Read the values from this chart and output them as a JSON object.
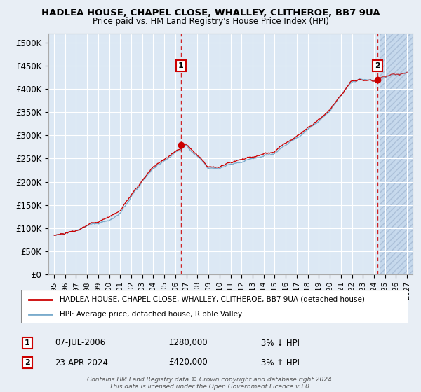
{
  "title": "HADLEA HOUSE, CHAPEL CLOSE, WHALLEY, CLITHEROE, BB7 9UA",
  "subtitle": "Price paid vs. HM Land Registry's House Price Index (HPI)",
  "background_color": "#e8eef5",
  "plot_bg_color": "#dce8f4",
  "grid_color": "#ffffff",
  "sale1_date_num": 2006.52,
  "sale1_price": 280000,
  "sale1_label": "07-JUL-2006",
  "sale1_hpi_rel": "3% ↓ HPI",
  "sale2_date_num": 2024.31,
  "sale2_price": 420000,
  "sale2_label": "23-APR-2024",
  "sale2_hpi_rel": "3% ↑ HPI",
  "ylabel_ticks": [
    0,
    50000,
    100000,
    150000,
    200000,
    250000,
    300000,
    350000,
    400000,
    450000,
    500000
  ],
  "ylabel_labels": [
    "£0",
    "£50K",
    "£100K",
    "£150K",
    "£200K",
    "£250K",
    "£300K",
    "£350K",
    "£400K",
    "£450K",
    "£500K"
  ],
  "xlim": [
    1994.5,
    2027.5
  ],
  "ylim": [
    0,
    520000
  ],
  "xtick_years": [
    1995,
    1996,
    1997,
    1998,
    1999,
    2000,
    2001,
    2002,
    2003,
    2004,
    2005,
    2006,
    2007,
    2008,
    2009,
    2010,
    2011,
    2012,
    2013,
    2014,
    2015,
    2016,
    2017,
    2018,
    2019,
    2020,
    2021,
    2022,
    2023,
    2024,
    2025,
    2026,
    2027
  ],
  "legend_line1": "HADLEA HOUSE, CHAPEL CLOSE, WHALLEY, CLITHEROE, BB7 9UA (detached house)",
  "legend_line2": "HPI: Average price, detached house, Ribble Valley",
  "footer": "Contains HM Land Registry data © Crown copyright and database right 2024.\nThis data is licensed under the Open Government Licence v3.0.",
  "red_line_color": "#cc0000",
  "blue_line_color": "#7aabcc",
  "marker_color": "#cc0000",
  "future_start": 2024.5,
  "sale1_ann_y": 450000,
  "sale2_ann_y": 450000
}
